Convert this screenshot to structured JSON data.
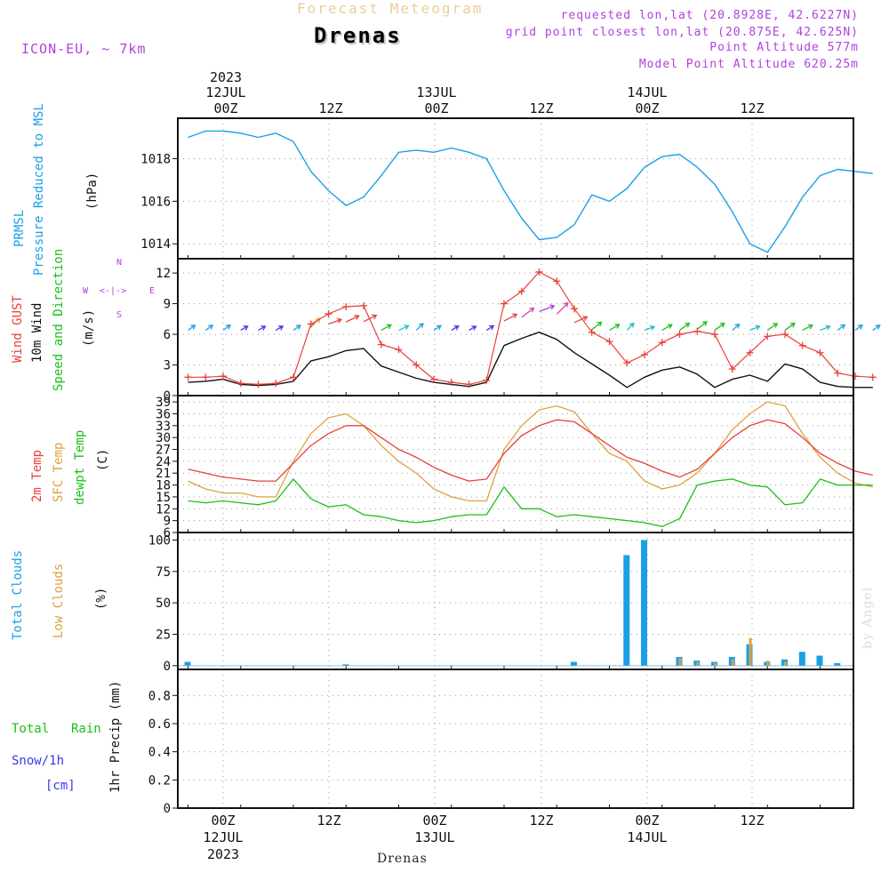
{
  "header": {
    "title": "Forecast Meteogram",
    "location": "Drenas",
    "model": "ICON-EU, ~ 7km",
    "requested": "requested lon,lat (20.8928E, 42.6227N)",
    "grid_point": "grid point closest lon,lat (20.875E, 42.625N)",
    "point_altitude": "Point Altitude 577m",
    "model_altitude": "Model Point Altitude 620.25m",
    "credit": "by Angel",
    "bottom_label": "Drenas"
  },
  "time_axis": {
    "ticks": [
      "00Z",
      "12Z",
      "00Z",
      "12Z",
      "00Z",
      "12Z"
    ],
    "days": [
      "12JUL",
      "13JUL",
      "14JUL"
    ],
    "year": "2023"
  },
  "colors": {
    "pressure": "#1a9fe8",
    "gust": "#e8403a",
    "wind": "#111111",
    "temp": "#e8403a",
    "sfc_temp": "#e0a040",
    "dewpoint": "#18c018",
    "total_clouds": "#1a9fe8",
    "low_clouds": "#e0a040",
    "rain": "#18c018",
    "snow": "#3a3ae8",
    "compass": "#b040e0"
  },
  "panels": {
    "pressure": {
      "label1": "PRMSL",
      "label2": "Pressure Reduced to MSL",
      "unit": "(hPa)"
    },
    "wind": {
      "label1": "Wind GUST",
      "label2": "10m Wind",
      "label3": "Speed and Direction",
      "unit": "(m/s)",
      "compass": {
        "n": "N",
        "s": "S",
        "e": "E",
        "w": "W"
      }
    },
    "temp": {
      "label1": "2m Temp",
      "label2": "SFC Temp",
      "label3": "dewpt Temp",
      "unit": "(C)"
    },
    "clouds": {
      "label1": "Total Clouds",
      "label2": "Low Clouds",
      "unit": "(%)"
    },
    "precip": {
      "label1": "Total",
      "label2": "Rain",
      "label3": "Snow/1h",
      "label4": "[cm]",
      "label5": "1hr Precip (mm)"
    }
  },
  "chart_data": [
    {
      "type": "line",
      "title": "PRMSL Pressure Reduced to MSL",
      "ylabel": "(hPa)",
      "yticks": [
        1014,
        1016,
        1018
      ],
      "x_hours": [
        -4,
        -2,
        0,
        2,
        4,
        6,
        8,
        10,
        12,
        14,
        16,
        18,
        20,
        22,
        24,
        26,
        28,
        30,
        32,
        34,
        36,
        38,
        40,
        42,
        44,
        46,
        48,
        50,
        52,
        54,
        56,
        58,
        60,
        62,
        64,
        66,
        68,
        70,
        72,
        74
      ],
      "series": [
        {
          "name": "PRMSL",
          "values": [
            1019.0,
            1019.3,
            1019.3,
            1019.2,
            1019.0,
            1019.2,
            1018.8,
            1017.4,
            1016.5,
            1015.8,
            1016.2,
            1017.2,
            1018.3,
            1018.4,
            1018.3,
            1018.5,
            1018.3,
            1018.0,
            1016.5,
            1015.2,
            1014.2,
            1014.3,
            1014.9,
            1016.3,
            1016.0,
            1016.6,
            1017.6,
            1018.1,
            1018.2,
            1017.6,
            1016.8,
            1015.5,
            1014.0,
            1013.6,
            1014.8,
            1016.2,
            1017.2,
            1017.5,
            1017.4,
            1017.3
          ]
        }
      ]
    },
    {
      "type": "line",
      "title": "Wind GUST / 10m Wind Speed and Direction",
      "ylabel": "(m/s)",
      "yticks": [
        0,
        3,
        6,
        9,
        12
      ],
      "x_hours": [
        -4,
        -2,
        0,
        2,
        4,
        6,
        8,
        10,
        12,
        14,
        16,
        18,
        20,
        22,
        24,
        26,
        28,
        30,
        32,
        34,
        36,
        38,
        40,
        42,
        44,
        46,
        48,
        50,
        52,
        54,
        56,
        58,
        60,
        62,
        64,
        66,
        68,
        70,
        72,
        74
      ],
      "series": [
        {
          "name": "Wind GUST",
          "values": [
            1.8,
            1.8,
            1.9,
            1.2,
            1.1,
            1.2,
            1.8,
            7.0,
            8.0,
            8.7,
            8.8,
            5.0,
            4.5,
            3.0,
            1.6,
            1.3,
            1.1,
            1.5,
            9.0,
            10.2,
            12.1,
            11.2,
            8.5,
            6.2,
            5.3,
            3.2,
            4.0,
            5.2,
            6.0,
            6.3,
            6.0,
            2.6,
            4.2,
            5.8,
            6.0,
            4.9,
            4.2,
            2.2,
            1.9,
            1.8
          ]
        },
        {
          "name": "10m Wind",
          "values": [
            1.3,
            1.4,
            1.6,
            1.1,
            1.0,
            1.1,
            1.4,
            3.4,
            3.8,
            4.4,
            4.6,
            2.9,
            2.3,
            1.7,
            1.3,
            1.1,
            0.9,
            1.3,
            4.9,
            5.6,
            6.2,
            5.5,
            4.2,
            3.1,
            2.0,
            0.8,
            1.8,
            2.5,
            2.8,
            2.1,
            0.8,
            1.6,
            2.0,
            1.4,
            3.1,
            2.6,
            1.3,
            0.9,
            0.8,
            0.8
          ]
        }
      ]
    },
    {
      "type": "line",
      "title": "2m Temp / SFC Temp / dewpt Temp",
      "ylabel": "(C)",
      "yticks": [
        6,
        9,
        12,
        15,
        18,
        21,
        24,
        27,
        30,
        33,
        36,
        39
      ],
      "x_hours": [
        -4,
        -2,
        0,
        2,
        4,
        6,
        8,
        10,
        12,
        14,
        16,
        18,
        20,
        22,
        24,
        26,
        28,
        30,
        32,
        34,
        36,
        38,
        40,
        42,
        44,
        46,
        48,
        50,
        52,
        54,
        56,
        58,
        60,
        62,
        64,
        66,
        68,
        70,
        72,
        74
      ],
      "series": [
        {
          "name": "2m Temp",
          "values": [
            22,
            21,
            20,
            19.5,
            19,
            19,
            23.5,
            28,
            31,
            33,
            33,
            30,
            27,
            25,
            22.5,
            20.5,
            19,
            19.5,
            26,
            30.5,
            33,
            34.5,
            34,
            31,
            28,
            25,
            23.5,
            21.5,
            20,
            22,
            26,
            30,
            33,
            34.5,
            33.5,
            30,
            26,
            23.5,
            21.5,
            20.5
          ]
        },
        {
          "name": "SFC Temp",
          "values": [
            19,
            17,
            16,
            16,
            15,
            15,
            24,
            31,
            35,
            36,
            33,
            28,
            24,
            21,
            17,
            15,
            14,
            14,
            27,
            33,
            37,
            38,
            36.5,
            31,
            26,
            24,
            19,
            17,
            18,
            21,
            26,
            32,
            36,
            39,
            38,
            31,
            25,
            21,
            18.5,
            17.5
          ]
        },
        {
          "name": "dewpt Temp",
          "values": [
            14,
            13.5,
            14,
            13.5,
            13,
            14,
            19.5,
            14.5,
            12.5,
            13,
            10.5,
            10,
            9,
            8.5,
            9,
            10,
            10.5,
            10.5,
            17.5,
            12,
            12,
            10,
            10.5,
            10,
            9.5,
            9,
            8.5,
            7.5,
            9.5,
            18,
            19,
            19.5,
            18,
            17.5,
            13,
            13.5,
            19.5,
            18,
            18,
            18
          ]
        }
      ]
    },
    {
      "type": "bar",
      "title": "Total Clouds / Low Clouds",
      "ylabel": "(%)",
      "yticks": [
        0,
        25,
        50,
        75,
        100
      ],
      "x_hours": [
        -4,
        -2,
        0,
        2,
        4,
        6,
        8,
        10,
        12,
        14,
        16,
        18,
        20,
        22,
        24,
        26,
        28,
        30,
        32,
        34,
        36,
        38,
        40,
        42,
        44,
        46,
        48,
        50,
        52,
        54,
        56,
        58,
        60,
        62,
        64,
        66,
        68,
        70,
        72,
        74
      ],
      "series": [
        {
          "name": "Total Clouds",
          "values": [
            3,
            0,
            0,
            0,
            0,
            0,
            0,
            0,
            0,
            1,
            0,
            0,
            0,
            0,
            0,
            0,
            0,
            0,
            0,
            0,
            0,
            0,
            3,
            0,
            0,
            88,
            100,
            0,
            7,
            4,
            3,
            7,
            17,
            3,
            5,
            11,
            8,
            2,
            0,
            0
          ]
        },
        {
          "name": "Low Clouds",
          "values": [
            0,
            0,
            0,
            0,
            0,
            0,
            0,
            0,
            0,
            0,
            0,
            0,
            0,
            0,
            0,
            0,
            0,
            0,
            0,
            0,
            0,
            0,
            0,
            0,
            0,
            0,
            0,
            0,
            6,
            3,
            2,
            5,
            22,
            4,
            3,
            0,
            0,
            0,
            0,
            0
          ]
        }
      ]
    },
    {
      "type": "bar",
      "title": "Total Rain / Snow 1hr Precip",
      "ylabel": "1hr Precip (mm)",
      "yticks": [
        0,
        0.2,
        0.4,
        0.6,
        0.8
      ],
      "x_hours": [
        -4,
        -2,
        0,
        2,
        4,
        6,
        8,
        10,
        12,
        14,
        16,
        18,
        20,
        22,
        24,
        26,
        28,
        30,
        32,
        34,
        36,
        38,
        40,
        42,
        44,
        46,
        48,
        50,
        52,
        54,
        56,
        58,
        60,
        62,
        64,
        66,
        68,
        70,
        72,
        74
      ],
      "series": [
        {
          "name": "Total Rain",
          "values": [
            0,
            0,
            0,
            0,
            0,
            0,
            0,
            0,
            0,
            0,
            0,
            0,
            0,
            0,
            0,
            0,
            0,
            0,
            0,
            0,
            0,
            0,
            0,
            0,
            0,
            0,
            0,
            0,
            0,
            0,
            0,
            0,
            0,
            0,
            0,
            0,
            0,
            0,
            0,
            0
          ]
        },
        {
          "name": "Snow/1h",
          "values": [
            0,
            0,
            0,
            0,
            0,
            0,
            0,
            0,
            0,
            0,
            0,
            0,
            0,
            0,
            0,
            0,
            0,
            0,
            0,
            0,
            0,
            0,
            0,
            0,
            0,
            0,
            0,
            0,
            0,
            0,
            0,
            0,
            0,
            0,
            0,
            0,
            0,
            0,
            0,
            0
          ]
        }
      ]
    }
  ]
}
